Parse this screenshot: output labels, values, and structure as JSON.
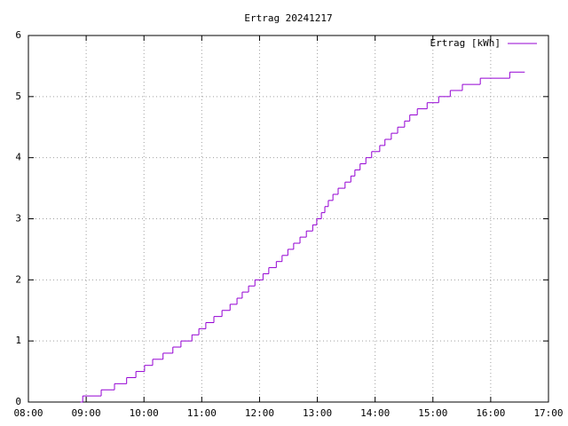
{
  "chart_data": {
    "type": "step",
    "title": "Ertrag 20241217",
    "x": [
      8.9,
      8.94,
      9.26,
      9.49,
      9.7,
      9.86,
      10.01,
      10.15,
      10.33,
      10.5,
      10.64,
      10.83,
      10.95,
      11.07,
      11.21,
      11.35,
      11.49,
      11.61,
      11.7,
      11.81,
      11.92,
      12.06,
      12.16,
      12.29,
      12.39,
      12.49,
      12.59,
      12.7,
      12.81,
      12.92,
      12.99,
      13.07,
      13.13,
      13.19,
      13.27,
      13.36,
      13.48,
      13.58,
      13.65,
      13.74,
      13.84,
      13.94,
      14.08,
      14.17,
      14.28,
      14.39,
      14.51,
      14.6,
      14.73,
      14.9,
      15.1,
      15.3,
      15.51,
      15.82,
      16.33,
      16.59
    ],
    "series": [
      {
        "name": "Ertrag [kWh]",
        "color": "#9400d3",
        "values": [
          0,
          0.1,
          0.2,
          0.3,
          0.4,
          0.5,
          0.6,
          0.7,
          0.8,
          0.9,
          1.0,
          1.1,
          1.2,
          1.3,
          1.4,
          1.5,
          1.6,
          1.7,
          1.8,
          1.9,
          2.0,
          2.1,
          2.2,
          2.3,
          2.4,
          2.5,
          2.6,
          2.7,
          2.8,
          2.9,
          3.0,
          3.1,
          3.2,
          3.3,
          3.4,
          3.5,
          3.6,
          3.7,
          3.8,
          3.9,
          4.0,
          4.1,
          4.2,
          4.3,
          4.4,
          4.5,
          4.6,
          4.7,
          4.8,
          4.9,
          5.0,
          5.1,
          5.2,
          5.3,
          5.4,
          5.4
        ]
      }
    ],
    "xlim": [
      8,
      17
    ],
    "xticks": [
      {
        "value": 8,
        "label": "08:00"
      },
      {
        "value": 9,
        "label": "09:00"
      },
      {
        "value": 10,
        "label": "10:00"
      },
      {
        "value": 11,
        "label": "11:00"
      },
      {
        "value": 12,
        "label": "12:00"
      },
      {
        "value": 13,
        "label": "13:00"
      },
      {
        "value": 14,
        "label": "14:00"
      },
      {
        "value": 15,
        "label": "15:00"
      },
      {
        "value": 16,
        "label": "16:00"
      },
      {
        "value": 17,
        "label": "17:00"
      }
    ],
    "ylim": [
      0,
      6
    ],
    "yticks": [
      0,
      1,
      2,
      3,
      4,
      5,
      6
    ],
    "grid": true,
    "legend": "top-right"
  }
}
